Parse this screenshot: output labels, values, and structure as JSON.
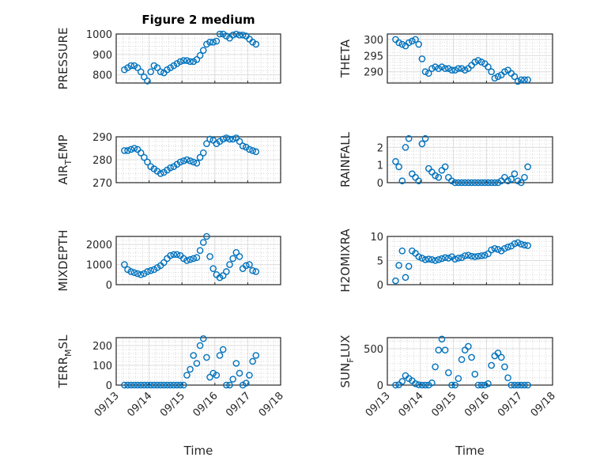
{
  "figure_title": "Figure 2 medium",
  "chart_data": [
    {
      "type": "scatter",
      "title": "Figure 2 medium",
      "ylabel": "PRESSURE",
      "xlabel": "",
      "ylim": [
        760,
        1000
      ],
      "yticks": [
        800,
        900,
        1000
      ],
      "values": [
        825,
        835,
        845,
        845,
        835,
        815,
        790,
        770,
        815,
        845,
        835,
        815,
        810,
        825,
        835,
        845,
        855,
        865,
        870,
        870,
        865,
        865,
        875,
        895,
        920,
        950,
        960,
        960,
        965,
        1000,
        1000,
        990,
        980,
        995,
        1000,
        995,
        995,
        990,
        975,
        960,
        950
      ]
    },
    {
      "type": "scatter",
      "title": "",
      "ylabel": "THETA",
      "xlabel": "",
      "ylim": [
        286.5,
        301.7
      ],
      "yticks": [
        290,
        295,
        300
      ],
      "values": [
        300,
        299,
        298.5,
        298,
        299,
        299.5,
        300,
        298.5,
        294,
        290,
        289.5,
        291,
        291.5,
        291,
        291.5,
        291,
        291,
        290.5,
        290.5,
        291,
        291,
        290.5,
        291,
        292,
        293,
        293.5,
        293,
        292.5,
        291.5,
        290,
        288,
        288.5,
        289,
        290,
        290.5,
        289.5,
        288.5,
        287,
        287.5,
        287.5,
        287.5
      ]
    },
    {
      "type": "scatter",
      "title": "",
      "ylabel": "AIR_TEMP",
      "xlabel": "",
      "ylim": [
        270,
        290
      ],
      "yticks": [
        270,
        280,
        290
      ],
      "values": [
        284,
        284,
        284.5,
        285,
        284.5,
        283,
        281,
        279,
        277,
        276,
        275,
        274,
        274.5,
        275.5,
        276.5,
        277,
        278,
        279,
        279.5,
        280,
        279.5,
        279,
        278.5,
        281,
        283,
        287,
        289,
        288.5,
        287,
        288,
        289,
        289.5,
        289,
        289,
        289.5,
        288,
        286,
        285.5,
        284.5,
        284,
        283.5
      ]
    },
    {
      "type": "scatter",
      "title": "",
      "ylabel": "RAINFALL",
      "xlabel": "",
      "ylim": [
        0,
        2.6
      ],
      "yticks": [
        0,
        1,
        2
      ],
      "values": [
        1.2,
        0.9,
        0.1,
        2.0,
        2.5,
        0.5,
        0.3,
        0.1,
        2.2,
        2.5,
        0.8,
        0.6,
        0.4,
        0.3,
        0.7,
        0.9,
        0.3,
        0.1,
        0,
        0,
        0,
        0,
        0,
        0,
        0,
        0,
        0,
        0,
        0,
        0,
        0,
        0,
        0.1,
        0.3,
        0.1,
        0.2,
        0.5,
        0.1,
        0,
        0.3,
        0.9
      ]
    },
    {
      "type": "scatter",
      "title": "",
      "ylabel": "MIXDEPTH",
      "xlabel": "",
      "ylim": [
        0,
        2400
      ],
      "yticks": [
        0,
        1000,
        2000
      ],
      "values": [
        1000,
        750,
        650,
        600,
        550,
        500,
        550,
        650,
        700,
        750,
        850,
        950,
        1100,
        1300,
        1450,
        1500,
        1500,
        1450,
        1300,
        1200,
        1250,
        1300,
        1350,
        1700,
        2100,
        2400,
        1400,
        800,
        500,
        350,
        450,
        650,
        1000,
        1300,
        1600,
        1400,
        800,
        950,
        1000,
        700,
        650
      ]
    },
    {
      "type": "scatter",
      "title": "",
      "ylabel": "H2OMIXRA",
      "xlabel": "",
      "ylim": [
        0,
        10
      ],
      "yticks": [
        0,
        5,
        10
      ],
      "values": [
        0.8,
        4,
        7,
        1.5,
        3.8,
        7,
        6.5,
        5.8,
        5.5,
        5.2,
        5.3,
        5.2,
        5,
        5.2,
        5.4,
        5.6,
        5.5,
        5.8,
        5.3,
        5.5,
        5.6,
        6,
        6.1,
        5.9,
        5.8,
        5.9,
        6,
        6.1,
        6.4,
        7.2,
        7.5,
        7.3,
        7,
        7.5,
        7.8,
        8,
        8.5,
        8.7,
        8.4,
        8.2,
        8.1
      ]
    },
    {
      "type": "scatter",
      "title": "",
      "ylabel": "TERR_MSL",
      "xlabel": "Time",
      "ylim": [
        0,
        240
      ],
      "yticks": [
        0,
        100,
        200
      ],
      "values": [
        0,
        0,
        0,
        0,
        0,
        0,
        0,
        0,
        0,
        0,
        0,
        0,
        0,
        0,
        0,
        0,
        0,
        0,
        0,
        50,
        80,
        150,
        110,
        200,
        235,
        140,
        40,
        60,
        50,
        150,
        180,
        0,
        0,
        30,
        110,
        60,
        0,
        10,
        50,
        120,
        150
      ]
    },
    {
      "type": "scatter",
      "title": "",
      "ylabel": "SUN_FLUX",
      "xlabel": "Time",
      "ylim": [
        0,
        650
      ],
      "yticks": [
        0,
        500
      ],
      "values": [
        0,
        5,
        50,
        130,
        90,
        60,
        20,
        5,
        0,
        0,
        0,
        30,
        250,
        480,
        630,
        480,
        170,
        0,
        0,
        90,
        350,
        480,
        530,
        380,
        150,
        0,
        0,
        0,
        20,
        270,
        400,
        440,
        380,
        250,
        100,
        0,
        0,
        0,
        0,
        0,
        0
      ]
    }
  ],
  "x_axis": {
    "start_day": 0.25,
    "step_days": 0.1,
    "xlim_days": [
      0,
      5
    ],
    "tick_labels": [
      "09/13",
      "09/14",
      "09/15",
      "09/16",
      "09/17",
      "09/18"
    ]
  },
  "colors": {
    "marker": "#0072BD",
    "axis": "#262626",
    "grid": "#dcdcdc",
    "minor": "#c8c8c8"
  }
}
